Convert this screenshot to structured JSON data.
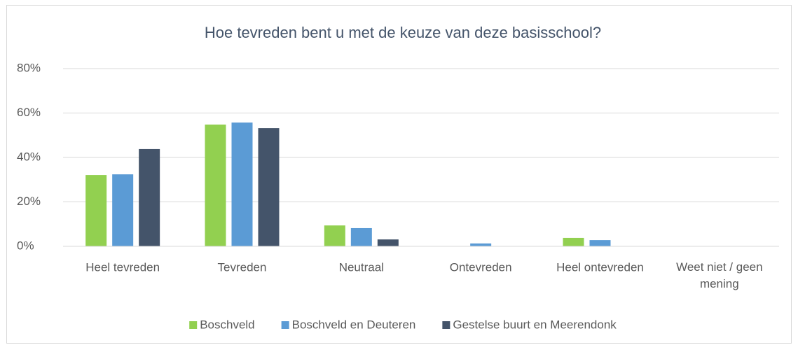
{
  "chart_data": {
    "type": "bar",
    "title": "Hoe tevreden bent u met de keuze van deze basisschool?",
    "categories": [
      "Heel tevreden",
      "Tevreden",
      "Neutraal",
      "Ontevreden",
      "Heel ontevreden",
      "Weet niet / geen mening"
    ],
    "series": [
      {
        "name": "Boschveld",
        "color": "#92d050",
        "values": [
          32.1,
          54.8,
          9.4,
          0,
          3.8,
          0
        ]
      },
      {
        "name": "Boschveld en Deuteren",
        "color": "#5b9bd5",
        "values": [
          32.4,
          55.7,
          8.2,
          1.3,
          2.8,
          0
        ]
      },
      {
        "name": "Gestelse buurt en Meerendonk",
        "color": "#44546a",
        "values": [
          43.8,
          53.2,
          3.1,
          0,
          0,
          0
        ]
      }
    ],
    "ylim": [
      0,
      80
    ],
    "yticks": [
      {
        "value": 0,
        "label": "0%"
      },
      {
        "value": 20,
        "label": "20%"
      },
      {
        "value": 40,
        "label": "40%"
      },
      {
        "value": 60,
        "label": "60%"
      },
      {
        "value": 80,
        "label": "80%"
      }
    ],
    "grid": true,
    "legend": "bottom"
  }
}
